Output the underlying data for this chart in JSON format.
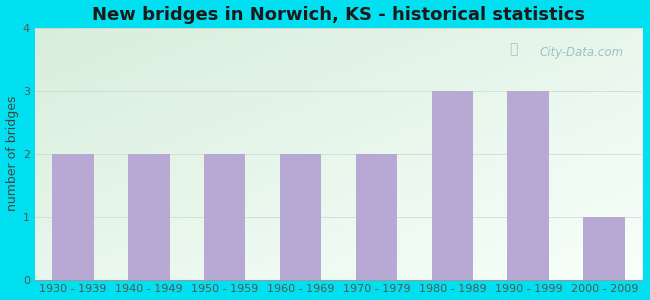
{
  "title": "New bridges in Norwich, KS - historical statistics",
  "categories": [
    "1930 - 1939",
    "1940 - 1949",
    "1950 - 1959",
    "1960 - 1969",
    "1970 - 1979",
    "1980 - 1989",
    "1990 - 1999",
    "2000 - 2009"
  ],
  "values": [
    2,
    2,
    2,
    2,
    2,
    3,
    3,
    1
  ],
  "bar_color": "#b8a8d4",
  "ylabel": "number of bridges",
  "ylim": [
    0,
    4
  ],
  "yticks": [
    0,
    1,
    2,
    3,
    4
  ],
  "background_outer": "#00e0f0",
  "background_grad_topleft": "#d8eedc",
  "background_grad_bottomright": "#f8fffc",
  "title_fontsize": 13,
  "axis_label_fontsize": 9,
  "tick_fontsize": 8,
  "watermark": "City-Data.com"
}
